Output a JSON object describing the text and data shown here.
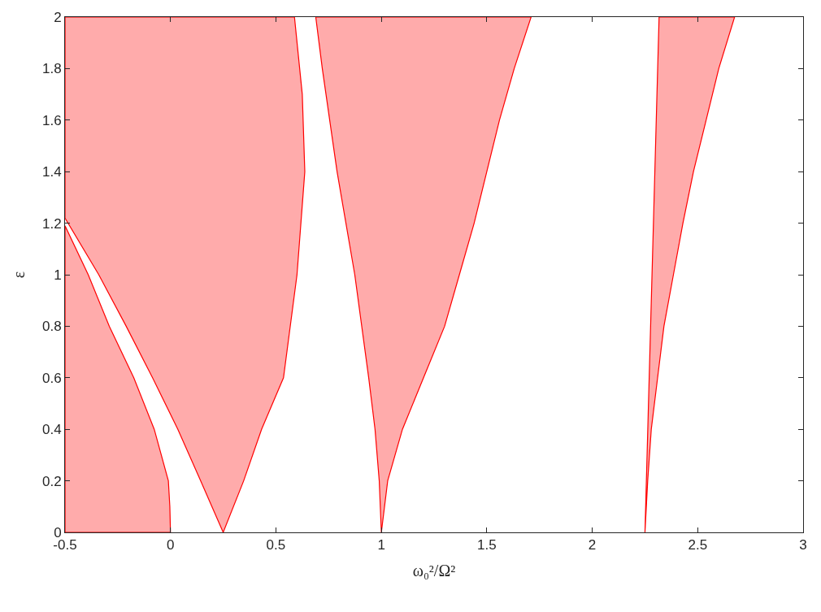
{
  "chart_data": {
    "type": "area",
    "xlabel": "ω₀²/Ω²",
    "ylabel": "ε",
    "xlim": [
      -0.5,
      3
    ],
    "ylim": [
      0,
      2
    ],
    "xticks": [
      -0.5,
      0,
      0.5,
      1,
      1.5,
      2,
      2.5,
      3
    ],
    "yticks": [
      0,
      0.2,
      0.4,
      0.6,
      0.8,
      1,
      1.2,
      1.4,
      1.6,
      1.8,
      2
    ],
    "series": [
      {
        "color": "#ff0000",
        "x": [
          -0.5,
          0,
          -0.003,
          -0.01,
          -0.077,
          -0.174,
          -0.29,
          -0.39,
          -0.5,
          -0.5
        ],
        "values": [
          0,
          0,
          0.1,
          0.2,
          0.4,
          0.6,
          0.8,
          1.0,
          1.19,
          0
        ]
      },
      {
        "color": "#ff0000",
        "x": [
          0.25,
          0.347,
          0.432,
          0.536,
          0.6,
          0.637,
          0.625,
          0.588,
          -0.5,
          -0.5,
          -0.34,
          -0.21,
          -0.085,
          0.035,
          0.143,
          0.25
        ],
        "values": [
          0,
          0.2,
          0.4,
          0.6,
          1.0,
          1.4,
          1.7,
          2,
          2,
          1.22,
          1.0,
          0.8,
          0.6,
          0.4,
          0.2,
          0
        ]
      },
      {
        "color": "#ff0000",
        "x": [
          1,
          1.03,
          1.1,
          1.2,
          1.3,
          1.37,
          1.44,
          1.5,
          1.56,
          1.63,
          1.71,
          0.689,
          0.72,
          0.79,
          0.874,
          0.94,
          0.97,
          0.99,
          1
        ],
        "values": [
          0,
          0.2,
          0.4,
          0.6,
          0.8,
          1.0,
          1.2,
          1.4,
          1.6,
          1.8,
          2,
          2,
          1.8,
          1.4,
          1.0,
          0.6,
          0.4,
          0.2,
          0
        ]
      },
      {
        "color": "#ff0000",
        "x": [
          2.25,
          2.263,
          2.28,
          2.31,
          2.34,
          2.385,
          2.43,
          2.48,
          2.54,
          2.6,
          2.675,
          2.317,
          2.25
        ],
        "values": [
          0,
          0.2,
          0.4,
          0.6,
          0.8,
          1.0,
          1.2,
          1.4,
          1.6,
          1.8,
          2,
          2,
          0
        ]
      }
    ]
  }
}
